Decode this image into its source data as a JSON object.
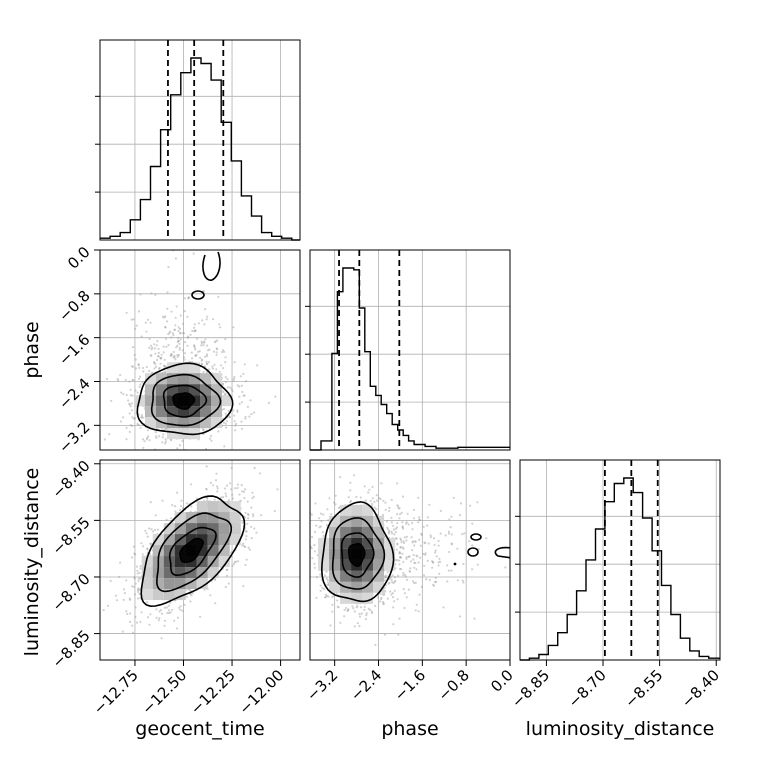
{
  "chart_data": {
    "type": "corner",
    "parameters": [
      "geocent_time",
      "phase",
      "luminosity_distance"
    ],
    "axes": {
      "geocent_time": {
        "ticks": [
          -12.75,
          -12.5,
          -12.25,
          -12.0
        ],
        "tick_labels": [
          "−12.75",
          "−12.50",
          "−12.25",
          "−12.00"
        ],
        "range": [
          -12.93,
          -11.9
        ]
      },
      "phase": {
        "ticks": [
          -3.2,
          -2.4,
          -1.6,
          -0.8,
          0.0
        ],
        "tick_labels": [
          "−3.2",
          "−2.4",
          "−1.6",
          "−0.8",
          "0.0"
        ],
        "range": [
          -3.65,
          0.0
        ]
      },
      "luminosity_distance": {
        "ticks": [
          -8.85,
          -8.7,
          -8.55,
          -8.4
        ],
        "tick_labels": [
          "−8.85",
          "−8.70",
          "−8.55",
          "−8.40"
        ],
        "range": [
          -8.92,
          -8.39
        ]
      }
    },
    "histograms": {
      "geocent_time": {
        "bins": [
          -12.93,
          -12.878,
          -12.826,
          -12.774,
          -12.722,
          -12.67,
          -12.618,
          -12.566,
          -12.514,
          -12.462,
          -12.41,
          -12.358,
          -12.306,
          -12.254,
          -12.202,
          -12.15,
          -12.098,
          -12.046,
          -11.994,
          -11.942,
          -11.9
        ],
        "counts": [
          0.01,
          0.02,
          0.04,
          0.11,
          0.22,
          0.4,
          0.6,
          0.79,
          0.91,
          0.99,
          0.96,
          0.87,
          0.64,
          0.43,
          0.24,
          0.13,
          0.04,
          0.02,
          0.01,
          0.0
        ],
        "quantiles": [
          -12.58,
          -12.445,
          -12.295
        ]
      },
      "phase": {
        "bins": [
          -3.65,
          -3.45,
          -3.25,
          -3.15,
          -3.05,
          -2.95,
          -2.85,
          -2.75,
          -2.65,
          -2.55,
          -2.45,
          -2.35,
          -2.25,
          -2.15,
          -2.05,
          -1.95,
          -1.85,
          -1.75,
          -1.55,
          -1.35,
          -0.95,
          -0.55,
          0.0
        ],
        "counts": [
          0.0,
          0.05,
          0.53,
          0.87,
          1.0,
          1.0,
          0.99,
          0.78,
          0.54,
          0.35,
          0.3,
          0.25,
          0.2,
          0.14,
          0.11,
          0.08,
          0.05,
          0.03,
          0.02,
          0.01,
          0.015,
          0.015
        ],
        "quantiles": [
          -3.12,
          -2.75,
          -2.02
        ]
      },
      "luminosity_distance": {
        "bins": [
          -8.92,
          -8.895,
          -8.87,
          -8.845,
          -8.82,
          -8.795,
          -8.77,
          -8.745,
          -8.72,
          -8.695,
          -8.67,
          -8.645,
          -8.62,
          -8.595,
          -8.57,
          -8.545,
          -8.52,
          -8.495,
          -8.47,
          -8.445,
          -8.42,
          -8.39
        ],
        "counts": [
          0.0,
          0.01,
          0.03,
          0.08,
          0.15,
          0.25,
          0.38,
          0.55,
          0.72,
          0.87,
          0.97,
          1.0,
          0.92,
          0.78,
          0.6,
          0.41,
          0.25,
          0.12,
          0.05,
          0.02,
          0.01
        ],
        "quantiles": [
          -8.695,
          -8.625,
          -8.555
        ]
      }
    },
    "joint": [
      {
        "x": "geocent_time",
        "y": "phase",
        "center": [
          -12.5,
          -2.75
        ],
        "spread": [
          0.12,
          0.32
        ],
        "corr": 0.0
      },
      {
        "x": "geocent_time",
        "y": "luminosity_distance",
        "center": [
          -12.46,
          -8.63
        ],
        "spread": [
          0.13,
          0.07
        ],
        "corr": 0.55
      },
      {
        "x": "phase",
        "y": "luminosity_distance",
        "center": [
          -2.8,
          -8.64
        ],
        "spread": [
          0.32,
          0.065
        ],
        "corr": 0.0
      }
    ],
    "grid": true,
    "colors": {
      "line": "#000000",
      "grid": "#b0b0b0",
      "scatter": "#9a9a9a"
    }
  }
}
